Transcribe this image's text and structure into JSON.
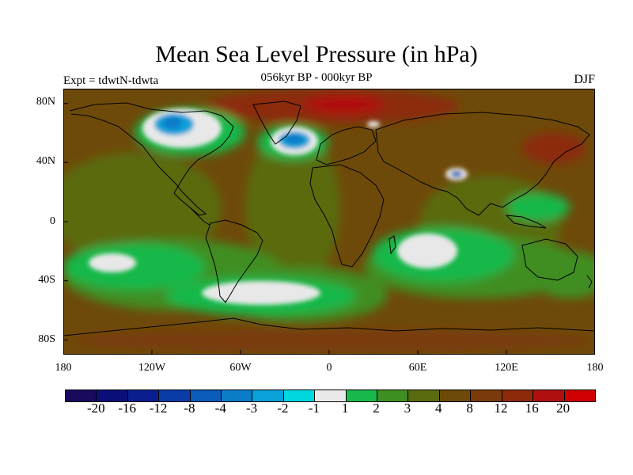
{
  "title": "Mean Sea Level Pressure (in hPa)",
  "subtitle": "056kyr BP - 000kyr BP",
  "expt": "Expt = tdwtN-tdwta",
  "season": "DJF",
  "lat_labels": [
    "80N",
    "40N",
    "0",
    "40S",
    "80S"
  ],
  "lon_labels": [
    "180",
    "120W",
    "60W",
    "0",
    "60E",
    "120E",
    "180"
  ],
  "colorbar": {
    "colors": [
      "#1a0a5e",
      "#0a0f78",
      "#0a1e90",
      "#0a3ca8",
      "#0a5cb8",
      "#0a7cc8",
      "#0aa0d8",
      "#00d8e0",
      "#e8e8e8",
      "#19b84a",
      "#3f8e22",
      "#5a6a10",
      "#6e4a0a",
      "#7a3a0a",
      "#8c2a0a",
      "#b01010",
      "#d00000"
    ],
    "levels": [
      "-20",
      "-16",
      "-12",
      "-8",
      "-4",
      "-3",
      "-2",
      "-1",
      "1",
      "2",
      "3",
      "4",
      "8",
      "12",
      "16",
      "20"
    ]
  },
  "legend_colors": {
    "land_base": "#6e4a0a",
    "ocean_base": "#5a6a10",
    "high_positive": "#8c2a0a",
    "max_positive": "#b01010",
    "moderate": "#3f8e22",
    "low_positive": "#19b84a",
    "near_zero": "#e8e8e8",
    "negative": "#0a7cc8",
    "strong_negative": "#0a5cb8"
  }
}
